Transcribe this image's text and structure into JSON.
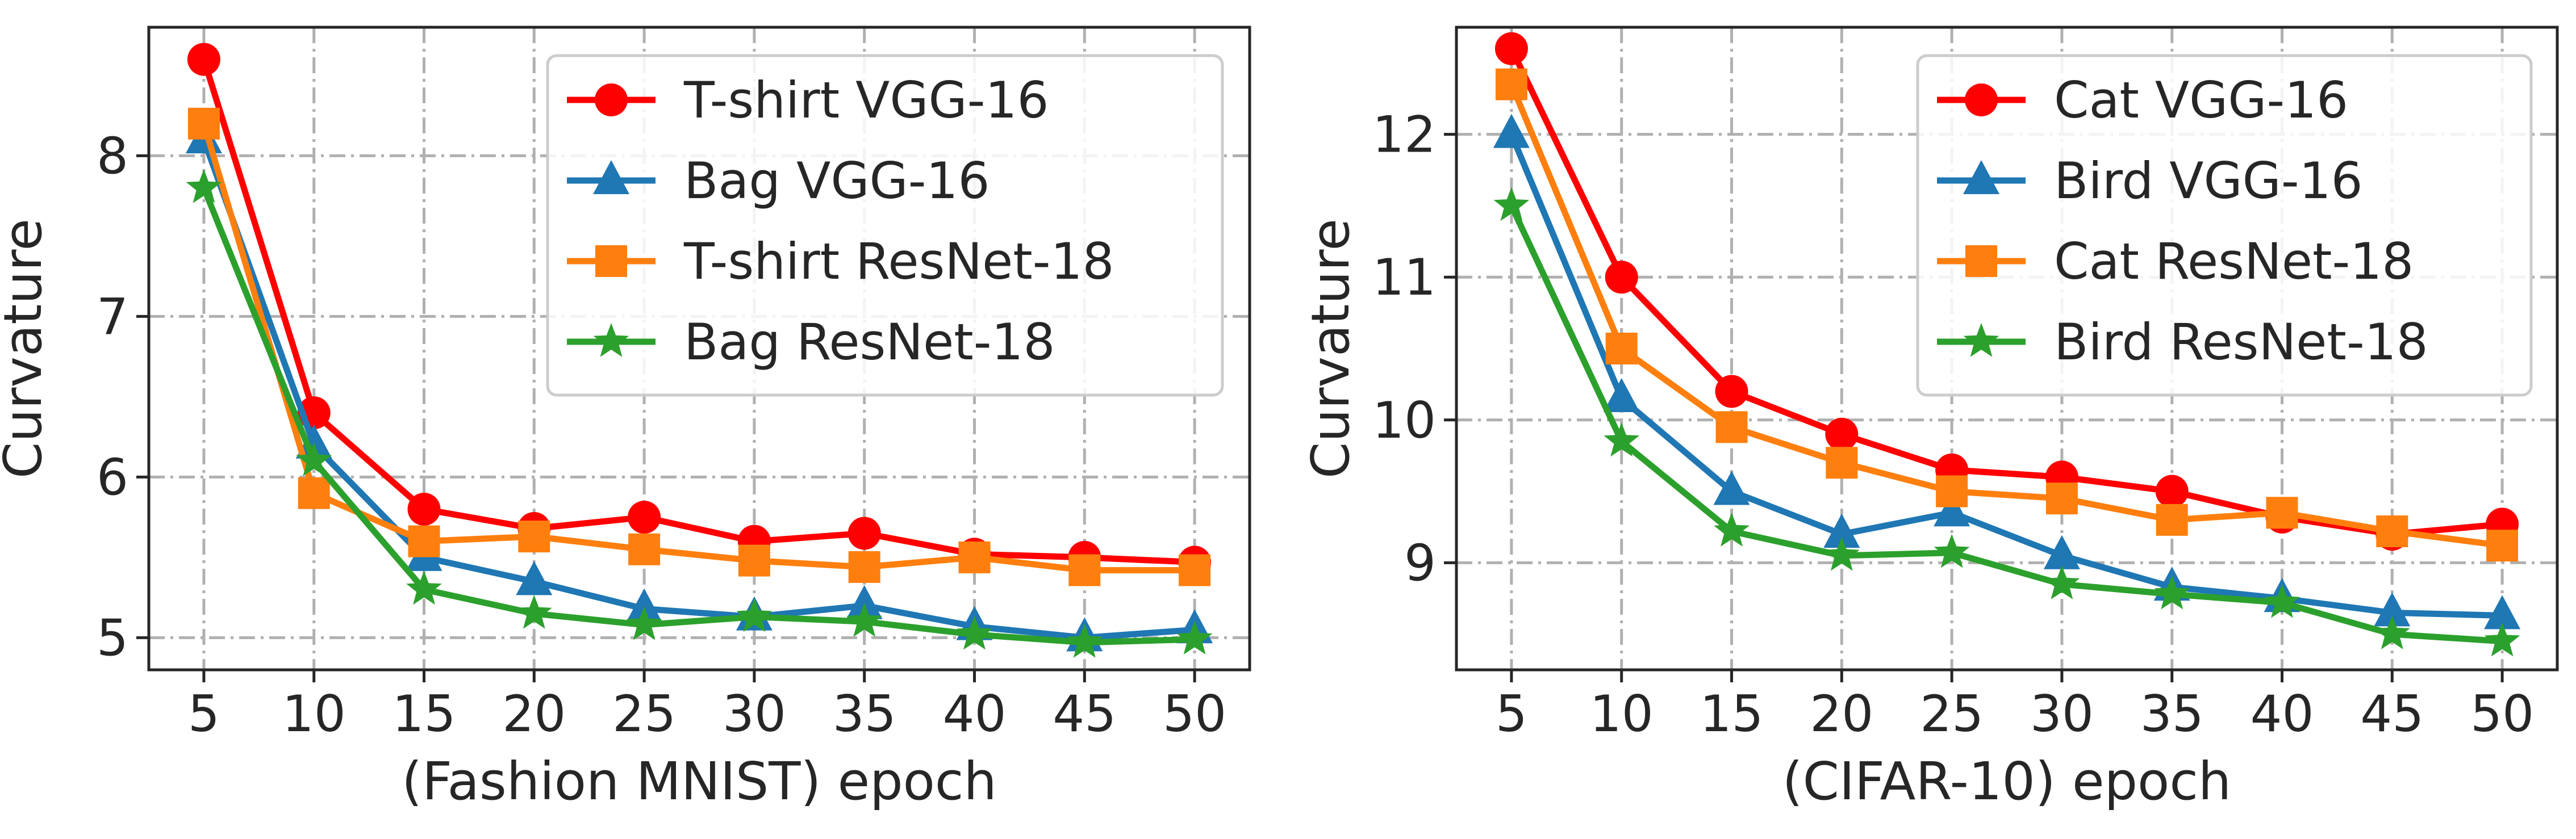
{
  "chart_data": [
    {
      "type": "line",
      "title": "",
      "xlabel": "(Fashion MNIST) epoch",
      "ylabel": "Curvature",
      "x": [
        5,
        10,
        15,
        20,
        25,
        30,
        35,
        40,
        45,
        50
      ],
      "xticks": [
        "5",
        "10",
        "15",
        "20",
        "25",
        "30",
        "35",
        "40",
        "45",
        "50"
      ],
      "yticks": [
        5,
        6,
        7,
        8
      ],
      "ytick_labels": [
        "5",
        "6",
        "7",
        "8"
      ],
      "xlim": [
        2.5,
        52.5
      ],
      "ylim": [
        4.8,
        8.8
      ],
      "grid": true,
      "legend_position": "top-right",
      "series": [
        {
          "name": "T-shirt VGG-16",
          "color": "#ff0000",
          "marker": "circle",
          "values": [
            8.6,
            6.4,
            5.8,
            5.68,
            5.75,
            5.6,
            5.65,
            5.52,
            5.5,
            5.47
          ]
        },
        {
          "name": "Bag VGG-16",
          "color": "#1f77b4",
          "marker": "triangle",
          "values": [
            8.1,
            6.2,
            5.5,
            5.35,
            5.18,
            5.13,
            5.2,
            5.07,
            5.0,
            5.05
          ]
        },
        {
          "name": "T-shirt ResNet-18",
          "color": "#ff7f0e",
          "marker": "square",
          "values": [
            8.2,
            5.9,
            5.6,
            5.63,
            5.55,
            5.48,
            5.44,
            5.5,
            5.42,
            5.42
          ]
        },
        {
          "name": "Bag ResNet-18",
          "color": "#2ca02c",
          "marker": "star",
          "values": [
            7.8,
            6.1,
            5.3,
            5.15,
            5.08,
            5.13,
            5.1,
            5.02,
            4.97,
            4.99
          ]
        }
      ]
    },
    {
      "type": "line",
      "title": "",
      "xlabel": "(CIFAR-10) epoch",
      "ylabel": "Curvature",
      "x": [
        5,
        10,
        15,
        20,
        25,
        30,
        35,
        40,
        45,
        50
      ],
      "xticks": [
        "5",
        "10",
        "15",
        "20",
        "25",
        "30",
        "35",
        "40",
        "45",
        "50"
      ],
      "yticks": [
        9,
        10,
        11,
        12
      ],
      "ytick_labels": [
        "9",
        "10",
        "11",
        "12"
      ],
      "xlim": [
        2.5,
        52.5
      ],
      "ylim": [
        8.25,
        12.75
      ],
      "grid": true,
      "legend_position": "top-right",
      "series": [
        {
          "name": "Cat VGG-16",
          "color": "#ff0000",
          "marker": "circle",
          "values": [
            12.6,
            11.0,
            10.2,
            9.9,
            9.65,
            9.6,
            9.5,
            9.32,
            9.2,
            9.27
          ]
        },
        {
          "name": "Bird VGG-16",
          "color": "#1f77b4",
          "marker": "triangle",
          "values": [
            12.0,
            10.15,
            9.5,
            9.2,
            9.35,
            9.05,
            8.83,
            8.75,
            8.65,
            8.63
          ]
        },
        {
          "name": "Cat ResNet-18",
          "color": "#ff7f0e",
          "marker": "square",
          "values": [
            12.35,
            10.5,
            9.95,
            9.7,
            9.5,
            9.45,
            9.3,
            9.35,
            9.22,
            9.12
          ]
        },
        {
          "name": "Bird ResNet-18",
          "color": "#2ca02c",
          "marker": "star",
          "values": [
            11.5,
            9.85,
            9.22,
            9.05,
            9.07,
            8.85,
            8.78,
            8.72,
            8.5,
            8.45
          ]
        }
      ]
    }
  ]
}
